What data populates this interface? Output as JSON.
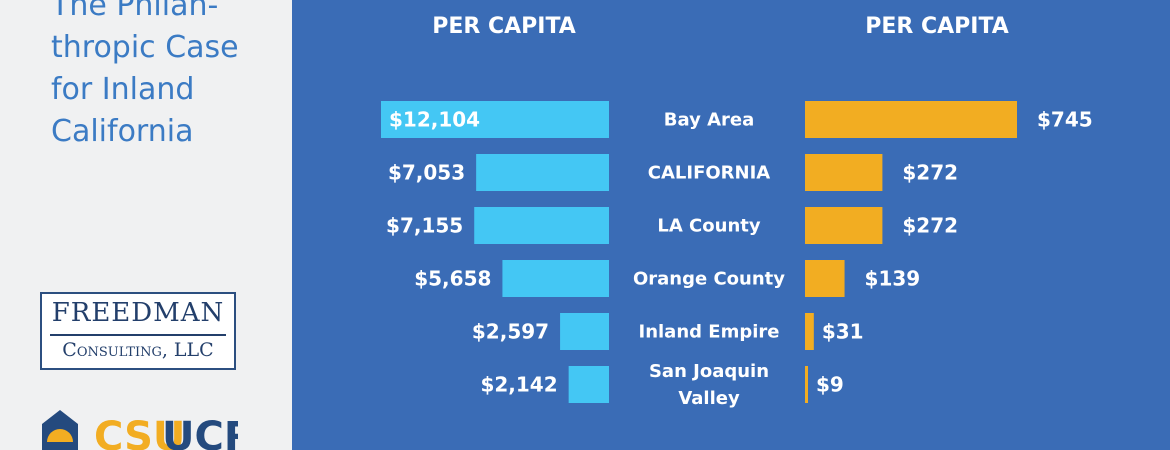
{
  "sidebar": {
    "title": "The Philan-\nthropic Case\nfor Inland\nCalifornia",
    "freedman_logo": {
      "name": "FREEDMAN",
      "sub": "Consulting, LLC"
    },
    "csu_logo": {
      "left": "CSU",
      "right": "UCR"
    }
  },
  "colors": {
    "panel": "#3a6cb6",
    "left_bars": "#44c7f4",
    "right_bars": "#f2ad22",
    "title": "#3b7bc4"
  },
  "chart_data": {
    "type": "bar",
    "categories": [
      "Bay Area",
      "CALIFORNIA",
      "LA County",
      "Orange County",
      "Inland Empire",
      "San Joaquin Valley"
    ],
    "category_label_lines": [
      [
        "Bay Area"
      ],
      [
        "CALIFORNIA"
      ],
      [
        "LA County"
      ],
      [
        "Orange County"
      ],
      [
        "Inland Empire"
      ],
      [
        "San Joaquin",
        "Valley"
      ]
    ],
    "series": [
      {
        "header": "PER CAPITA",
        "orientation": "right-to-left",
        "values": [
          12104,
          7053,
          7155,
          5658,
          2597,
          2142
        ],
        "labels": [
          "$12,104",
          "$7,053",
          "$7,155",
          "$5,658",
          "$2,597",
          "$2,142"
        ]
      },
      {
        "header": "PER CAPITA",
        "orientation": "left-to-right",
        "values": [
          745,
          272,
          272,
          139,
          31,
          9
        ],
        "labels": [
          "$745",
          "$272",
          "$272",
          "$139",
          "$31",
          "$9"
        ]
      }
    ],
    "grid": false,
    "legend": "none"
  }
}
